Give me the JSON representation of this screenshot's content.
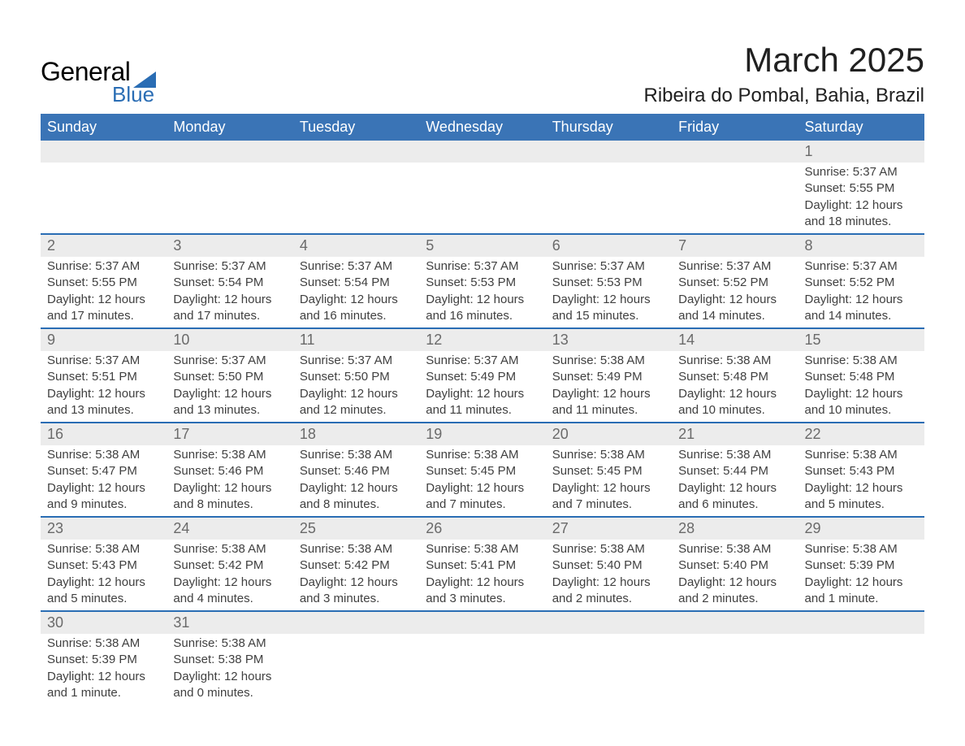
{
  "logo": {
    "main": "General",
    "sub": "Blue",
    "icon_name": "logo-shape-icon",
    "shape_color": "#2a6db4"
  },
  "title": "March 2025",
  "location": "Ribeira do Pombal, Bahia, Brazil",
  "colors": {
    "header_bg": "#3a74b6",
    "header_text": "#ffffff",
    "num_bg": "#ececec",
    "num_text": "#6a6a6a",
    "border_top": "#2a6db4",
    "body_text": "#404040",
    "title_text": "#202020"
  },
  "fonts": {
    "title_size_pt": 32,
    "location_size_pt": 18,
    "header_size_pt": 14,
    "cell_size_pt": 11
  },
  "calendar": {
    "type": "table",
    "day_headers": [
      "Sunday",
      "Monday",
      "Tuesday",
      "Wednesday",
      "Thursday",
      "Friday",
      "Saturday"
    ],
    "weeks": [
      [
        null,
        null,
        null,
        null,
        null,
        null,
        {
          "num": "1",
          "sunrise": "Sunrise: 5:37 AM",
          "sunset": "Sunset: 5:55 PM",
          "daylight1": "Daylight: 12 hours",
          "daylight2": "and 18 minutes."
        }
      ],
      [
        {
          "num": "2",
          "sunrise": "Sunrise: 5:37 AM",
          "sunset": "Sunset: 5:55 PM",
          "daylight1": "Daylight: 12 hours",
          "daylight2": "and 17 minutes."
        },
        {
          "num": "3",
          "sunrise": "Sunrise: 5:37 AM",
          "sunset": "Sunset: 5:54 PM",
          "daylight1": "Daylight: 12 hours",
          "daylight2": "and 17 minutes."
        },
        {
          "num": "4",
          "sunrise": "Sunrise: 5:37 AM",
          "sunset": "Sunset: 5:54 PM",
          "daylight1": "Daylight: 12 hours",
          "daylight2": "and 16 minutes."
        },
        {
          "num": "5",
          "sunrise": "Sunrise: 5:37 AM",
          "sunset": "Sunset: 5:53 PM",
          "daylight1": "Daylight: 12 hours",
          "daylight2": "and 16 minutes."
        },
        {
          "num": "6",
          "sunrise": "Sunrise: 5:37 AM",
          "sunset": "Sunset: 5:53 PM",
          "daylight1": "Daylight: 12 hours",
          "daylight2": "and 15 minutes."
        },
        {
          "num": "7",
          "sunrise": "Sunrise: 5:37 AM",
          "sunset": "Sunset: 5:52 PM",
          "daylight1": "Daylight: 12 hours",
          "daylight2": "and 14 minutes."
        },
        {
          "num": "8",
          "sunrise": "Sunrise: 5:37 AM",
          "sunset": "Sunset: 5:52 PM",
          "daylight1": "Daylight: 12 hours",
          "daylight2": "and 14 minutes."
        }
      ],
      [
        {
          "num": "9",
          "sunrise": "Sunrise: 5:37 AM",
          "sunset": "Sunset: 5:51 PM",
          "daylight1": "Daylight: 12 hours",
          "daylight2": "and 13 minutes."
        },
        {
          "num": "10",
          "sunrise": "Sunrise: 5:37 AM",
          "sunset": "Sunset: 5:50 PM",
          "daylight1": "Daylight: 12 hours",
          "daylight2": "and 13 minutes."
        },
        {
          "num": "11",
          "sunrise": "Sunrise: 5:37 AM",
          "sunset": "Sunset: 5:50 PM",
          "daylight1": "Daylight: 12 hours",
          "daylight2": "and 12 minutes."
        },
        {
          "num": "12",
          "sunrise": "Sunrise: 5:37 AM",
          "sunset": "Sunset: 5:49 PM",
          "daylight1": "Daylight: 12 hours",
          "daylight2": "and 11 minutes."
        },
        {
          "num": "13",
          "sunrise": "Sunrise: 5:38 AM",
          "sunset": "Sunset: 5:49 PM",
          "daylight1": "Daylight: 12 hours",
          "daylight2": "and 11 minutes."
        },
        {
          "num": "14",
          "sunrise": "Sunrise: 5:38 AM",
          "sunset": "Sunset: 5:48 PM",
          "daylight1": "Daylight: 12 hours",
          "daylight2": "and 10 minutes."
        },
        {
          "num": "15",
          "sunrise": "Sunrise: 5:38 AM",
          "sunset": "Sunset: 5:48 PM",
          "daylight1": "Daylight: 12 hours",
          "daylight2": "and 10 minutes."
        }
      ],
      [
        {
          "num": "16",
          "sunrise": "Sunrise: 5:38 AM",
          "sunset": "Sunset: 5:47 PM",
          "daylight1": "Daylight: 12 hours",
          "daylight2": "and 9 minutes."
        },
        {
          "num": "17",
          "sunrise": "Sunrise: 5:38 AM",
          "sunset": "Sunset: 5:46 PM",
          "daylight1": "Daylight: 12 hours",
          "daylight2": "and 8 minutes."
        },
        {
          "num": "18",
          "sunrise": "Sunrise: 5:38 AM",
          "sunset": "Sunset: 5:46 PM",
          "daylight1": "Daylight: 12 hours",
          "daylight2": "and 8 minutes."
        },
        {
          "num": "19",
          "sunrise": "Sunrise: 5:38 AM",
          "sunset": "Sunset: 5:45 PM",
          "daylight1": "Daylight: 12 hours",
          "daylight2": "and 7 minutes."
        },
        {
          "num": "20",
          "sunrise": "Sunrise: 5:38 AM",
          "sunset": "Sunset: 5:45 PM",
          "daylight1": "Daylight: 12 hours",
          "daylight2": "and 7 minutes."
        },
        {
          "num": "21",
          "sunrise": "Sunrise: 5:38 AM",
          "sunset": "Sunset: 5:44 PM",
          "daylight1": "Daylight: 12 hours",
          "daylight2": "and 6 minutes."
        },
        {
          "num": "22",
          "sunrise": "Sunrise: 5:38 AM",
          "sunset": "Sunset: 5:43 PM",
          "daylight1": "Daylight: 12 hours",
          "daylight2": "and 5 minutes."
        }
      ],
      [
        {
          "num": "23",
          "sunrise": "Sunrise: 5:38 AM",
          "sunset": "Sunset: 5:43 PM",
          "daylight1": "Daylight: 12 hours",
          "daylight2": "and 5 minutes."
        },
        {
          "num": "24",
          "sunrise": "Sunrise: 5:38 AM",
          "sunset": "Sunset: 5:42 PM",
          "daylight1": "Daylight: 12 hours",
          "daylight2": "and 4 minutes."
        },
        {
          "num": "25",
          "sunrise": "Sunrise: 5:38 AM",
          "sunset": "Sunset: 5:42 PM",
          "daylight1": "Daylight: 12 hours",
          "daylight2": "and 3 minutes."
        },
        {
          "num": "26",
          "sunrise": "Sunrise: 5:38 AM",
          "sunset": "Sunset: 5:41 PM",
          "daylight1": "Daylight: 12 hours",
          "daylight2": "and 3 minutes."
        },
        {
          "num": "27",
          "sunrise": "Sunrise: 5:38 AM",
          "sunset": "Sunset: 5:40 PM",
          "daylight1": "Daylight: 12 hours",
          "daylight2": "and 2 minutes."
        },
        {
          "num": "28",
          "sunrise": "Sunrise: 5:38 AM",
          "sunset": "Sunset: 5:40 PM",
          "daylight1": "Daylight: 12 hours",
          "daylight2": "and 2 minutes."
        },
        {
          "num": "29",
          "sunrise": "Sunrise: 5:38 AM",
          "sunset": "Sunset: 5:39 PM",
          "daylight1": "Daylight: 12 hours",
          "daylight2": "and 1 minute."
        }
      ],
      [
        {
          "num": "30",
          "sunrise": "Sunrise: 5:38 AM",
          "sunset": "Sunset: 5:39 PM",
          "daylight1": "Daylight: 12 hours",
          "daylight2": "and 1 minute."
        },
        {
          "num": "31",
          "sunrise": "Sunrise: 5:38 AM",
          "sunset": "Sunset: 5:38 PM",
          "daylight1": "Daylight: 12 hours",
          "daylight2": "and 0 minutes."
        },
        null,
        null,
        null,
        null,
        null
      ]
    ]
  }
}
